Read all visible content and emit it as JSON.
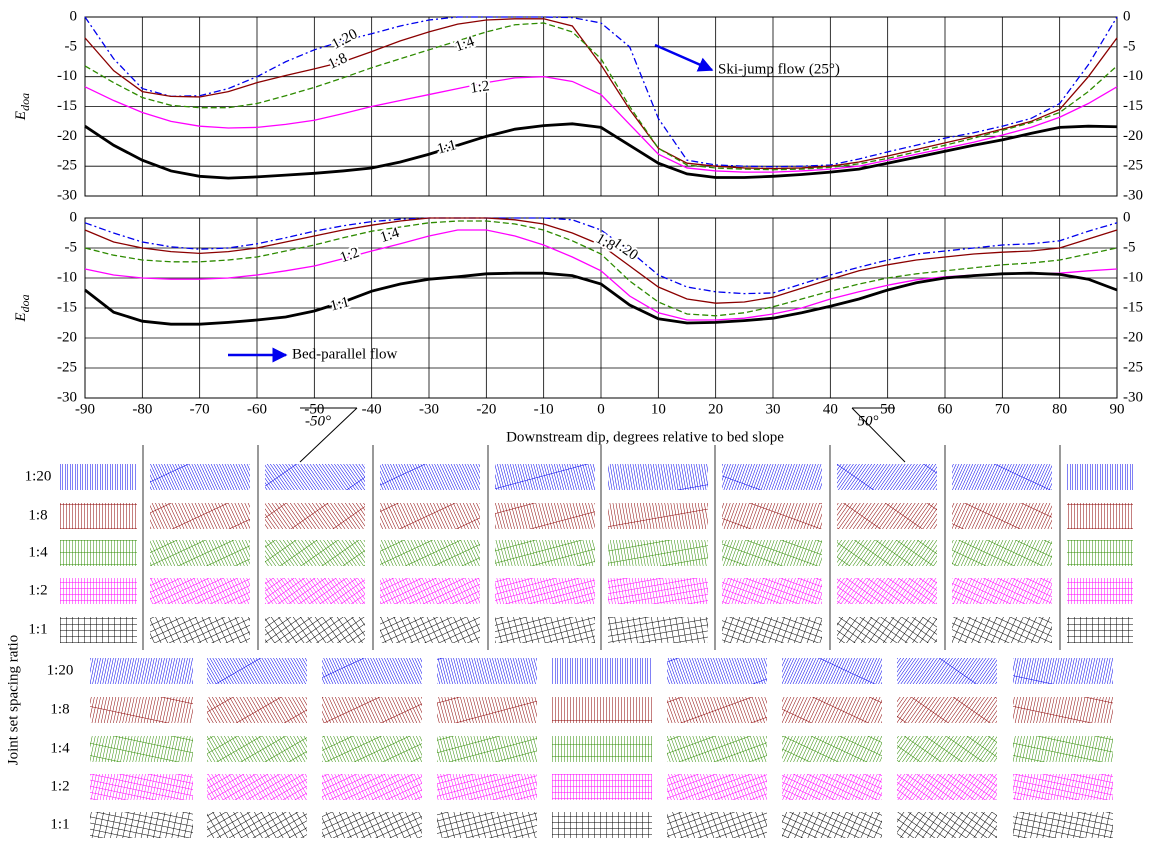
{
  "chart_data": [
    {
      "type": "line",
      "ylabel": "E",
      "ylabel_subscript": "doa",
      "annotation": "Ski-jump flow (25°)",
      "grid": true,
      "show_xtick_labels": false,
      "x": [
        -90,
        -85,
        -80,
        -75,
        -70,
        -65,
        -60,
        -55,
        -50,
        -45,
        -40,
        -35,
        -30,
        -25,
        -20,
        -15,
        -10,
        -5,
        0,
        5,
        10,
        15,
        20,
        25,
        30,
        35,
        40,
        45,
        50,
        55,
        60,
        65,
        70,
        75,
        80,
        85,
        90
      ],
      "xlim": [
        -90,
        90
      ],
      "xticks": [
        -90,
        -80,
        -70,
        -60,
        -50,
        -40,
        -30,
        -20,
        -10,
        0,
        10,
        20,
        30,
        40,
        50,
        60,
        70,
        80,
        90
      ],
      "ylim": [
        -30,
        0
      ],
      "yticks": [
        0,
        -5,
        -10,
        -15,
        -20,
        -25,
        -30
      ],
      "series": [
        {
          "name": "1:20",
          "color": "#0000ee",
          "dash": "dashdot",
          "values": [
            0,
            -7,
            -12,
            -13.3,
            -13.2,
            -12,
            -10,
            -7.5,
            -5.5,
            -4,
            -2.8,
            -1.5,
            -0.5,
            0,
            0,
            0,
            0,
            -0.1,
            -1,
            -5,
            -17,
            -24,
            -24.8,
            -25,
            -25.1,
            -25,
            -24.8,
            -23.8,
            -22.6,
            -21.5,
            -20.3,
            -19.4,
            -18.3,
            -17,
            -14.5,
            -8,
            0
          ]
        },
        {
          "name": "1:8",
          "color": "#8b0000",
          "dash": "solid",
          "values": [
            -3.5,
            -9,
            -12.5,
            -13.3,
            -13.4,
            -12.5,
            -11,
            -9.8,
            -8.7,
            -7.5,
            -5.8,
            -4,
            -2.5,
            -1.2,
            -0.5,
            -0.3,
            -0.3,
            -1.5,
            -8,
            -15.5,
            -22,
            -24.5,
            -25,
            -25.3,
            -25.4,
            -25.3,
            -25,
            -24.3,
            -23.3,
            -22.2,
            -21.1,
            -20,
            -18.8,
            -17.5,
            -15.5,
            -10,
            -3.5
          ]
        },
        {
          "name": "1:4",
          "color": "#2e8b00",
          "dash": "dashed",
          "values": [
            -8.2,
            -11,
            -13.5,
            -14.8,
            -15.2,
            -15.2,
            -14.5,
            -13.2,
            -11.8,
            -10.2,
            -8.5,
            -7,
            -5.5,
            -4,
            -2.5,
            -1.3,
            -1,
            -2.5,
            -7,
            -15,
            -22,
            -24.8,
            -25.3,
            -25.5,
            -25.6,
            -25.5,
            -25.2,
            -24.6,
            -23.7,
            -22.6,
            -21.5,
            -20.3,
            -19,
            -17.7,
            -16,
            -12.5,
            -8.2
          ]
        },
        {
          "name": "1:2",
          "color": "#ff00ff",
          "dash": "solid",
          "values": [
            -11.7,
            -14,
            -16,
            -17.5,
            -18.3,
            -18.6,
            -18.5,
            -18,
            -17.3,
            -16.2,
            -15,
            -14,
            -13,
            -12,
            -11,
            -10.2,
            -10,
            -10.8,
            -13,
            -18,
            -23,
            -25.3,
            -25.8,
            -26,
            -26,
            -25.8,
            -25.5,
            -25,
            -24,
            -23,
            -22,
            -21,
            -19.8,
            -18.5,
            -16.8,
            -14.5,
            -11.7
          ]
        },
        {
          "name": "1:1",
          "color": "#000000",
          "dash": "solid",
          "bold": true,
          "values": [
            -18.3,
            -21.5,
            -24,
            -25.8,
            -26.7,
            -27,
            -26.8,
            -26.5,
            -26.2,
            -25.8,
            -25.3,
            -24.3,
            -23,
            -21.5,
            -20,
            -18.8,
            -18.2,
            -17.9,
            -18.5,
            -21.5,
            -24.5,
            -26.3,
            -26.9,
            -26.9,
            -26.7,
            -26.4,
            -26,
            -25.5,
            -24.5,
            -23.5,
            -22.5,
            -21.5,
            -20.6,
            -19.5,
            -18.5,
            -18.3,
            -18.4
          ]
        }
      ]
    },
    {
      "type": "line",
      "ylabel": "E",
      "ylabel_subscript": "doa",
      "annotation": "Bed-parallel flow",
      "grid": true,
      "show_xtick_labels": true,
      "xlabel": "Downstream dip, degrees relative to bed slope",
      "angle_labels": [
        "-50°",
        "50°"
      ],
      "x": [
        -90,
        -85,
        -80,
        -75,
        -70,
        -65,
        -60,
        -55,
        -50,
        -45,
        -40,
        -35,
        -30,
        -25,
        -20,
        -15,
        -10,
        -5,
        0,
        5,
        10,
        15,
        20,
        25,
        30,
        35,
        40,
        45,
        50,
        55,
        60,
        65,
        70,
        75,
        80,
        85,
        90
      ],
      "xlim": [
        -90,
        90
      ],
      "xticks": [
        -90,
        -80,
        -70,
        -60,
        -50,
        -40,
        -30,
        -20,
        -10,
        0,
        10,
        20,
        30,
        40,
        50,
        60,
        70,
        80,
        90
      ],
      "ylim": [
        -30,
        0
      ],
      "yticks": [
        0,
        -5,
        -10,
        -15,
        -20,
        -25,
        -30
      ],
      "series": [
        {
          "name": "1:20",
          "color": "#0000ee",
          "dash": "dashdot",
          "values": [
            -0.8,
            -2.5,
            -4,
            -4.8,
            -5.2,
            -5,
            -4.3,
            -3.3,
            -2.2,
            -1.3,
            -0.6,
            -0.2,
            0,
            0,
            0,
            0,
            0,
            -0.3,
            -2,
            -5.5,
            -9.5,
            -11.5,
            -12.3,
            -12.6,
            -12.5,
            -11,
            -9.5,
            -8.2,
            -7,
            -6,
            -5.5,
            -5,
            -4.5,
            -4.3,
            -3.8,
            -2.2,
            -0.8
          ]
        },
        {
          "name": "1:8",
          "color": "#8b0000",
          "dash": "solid",
          "values": [
            -2,
            -4,
            -5,
            -5.6,
            -5.9,
            -5.6,
            -5,
            -4,
            -3,
            -2,
            -1.2,
            -0.5,
            0,
            0,
            0,
            -0.3,
            -1,
            -2.5,
            -4.5,
            -8,
            -11.5,
            -13.5,
            -14.2,
            -14,
            -13.2,
            -11.7,
            -10.2,
            -8.8,
            -7.8,
            -7,
            -6.5,
            -6,
            -5.7,
            -5.5,
            -5,
            -3.5,
            -2
          ]
        },
        {
          "name": "1:4",
          "color": "#2e8b00",
          "dash": "dashed",
          "values": [
            -5,
            -6.2,
            -7,
            -7.3,
            -7.3,
            -7,
            -6.5,
            -5.5,
            -4.5,
            -3.3,
            -2.2,
            -1.5,
            -0.8,
            -0.5,
            -0.5,
            -1,
            -2,
            -3.8,
            -6,
            -10.5,
            -14,
            -16,
            -16.3,
            -15.8,
            -14.8,
            -13.5,
            -12.2,
            -11,
            -10,
            -9.3,
            -8.8,
            -8.3,
            -7.8,
            -7.5,
            -7,
            -6,
            -5
          ]
        },
        {
          "name": "1:2",
          "color": "#ff00ff",
          "dash": "solid",
          "values": [
            -8.5,
            -9.5,
            -10,
            -10.2,
            -10.2,
            -10,
            -9.5,
            -8.8,
            -8,
            -6.8,
            -5.5,
            -4.3,
            -3,
            -2,
            -2,
            -3,
            -4.5,
            -6.5,
            -8.8,
            -13,
            -15.8,
            -17,
            -17,
            -16.7,
            -16,
            -15,
            -13.5,
            -12.3,
            -11.2,
            -10.3,
            -9.8,
            -9.5,
            -9.3,
            -9.3,
            -9.2,
            -8.8,
            -8.5
          ]
        },
        {
          "name": "1:1",
          "color": "#000000",
          "dash": "solid",
          "bold": true,
          "values": [
            -12,
            -15.7,
            -17.2,
            -17.7,
            -17.7,
            -17.4,
            -17,
            -16.5,
            -15.5,
            -14,
            -12.2,
            -11,
            -10.2,
            -9.8,
            -9.3,
            -9.2,
            -9.2,
            -9.6,
            -11,
            -14.5,
            -16.8,
            -17.5,
            -17.4,
            -17.1,
            -16.7,
            -15.8,
            -14.7,
            -13.5,
            -12,
            -10.8,
            -10,
            -9.6,
            -9.3,
            -9.2,
            -9.4,
            -10.2,
            -12
          ]
        }
      ]
    }
  ],
  "block_diagrams": {
    "y_label": "Joint set spacing ratio",
    "panels": [
      {
        "rows": [
          "1:20",
          "1:8",
          "1:4",
          "1:2",
          "1:1"
        ]
      },
      {
        "rows": [
          "1:20",
          "1:8",
          "1:4",
          "1:2",
          "1:1"
        ]
      }
    ]
  }
}
